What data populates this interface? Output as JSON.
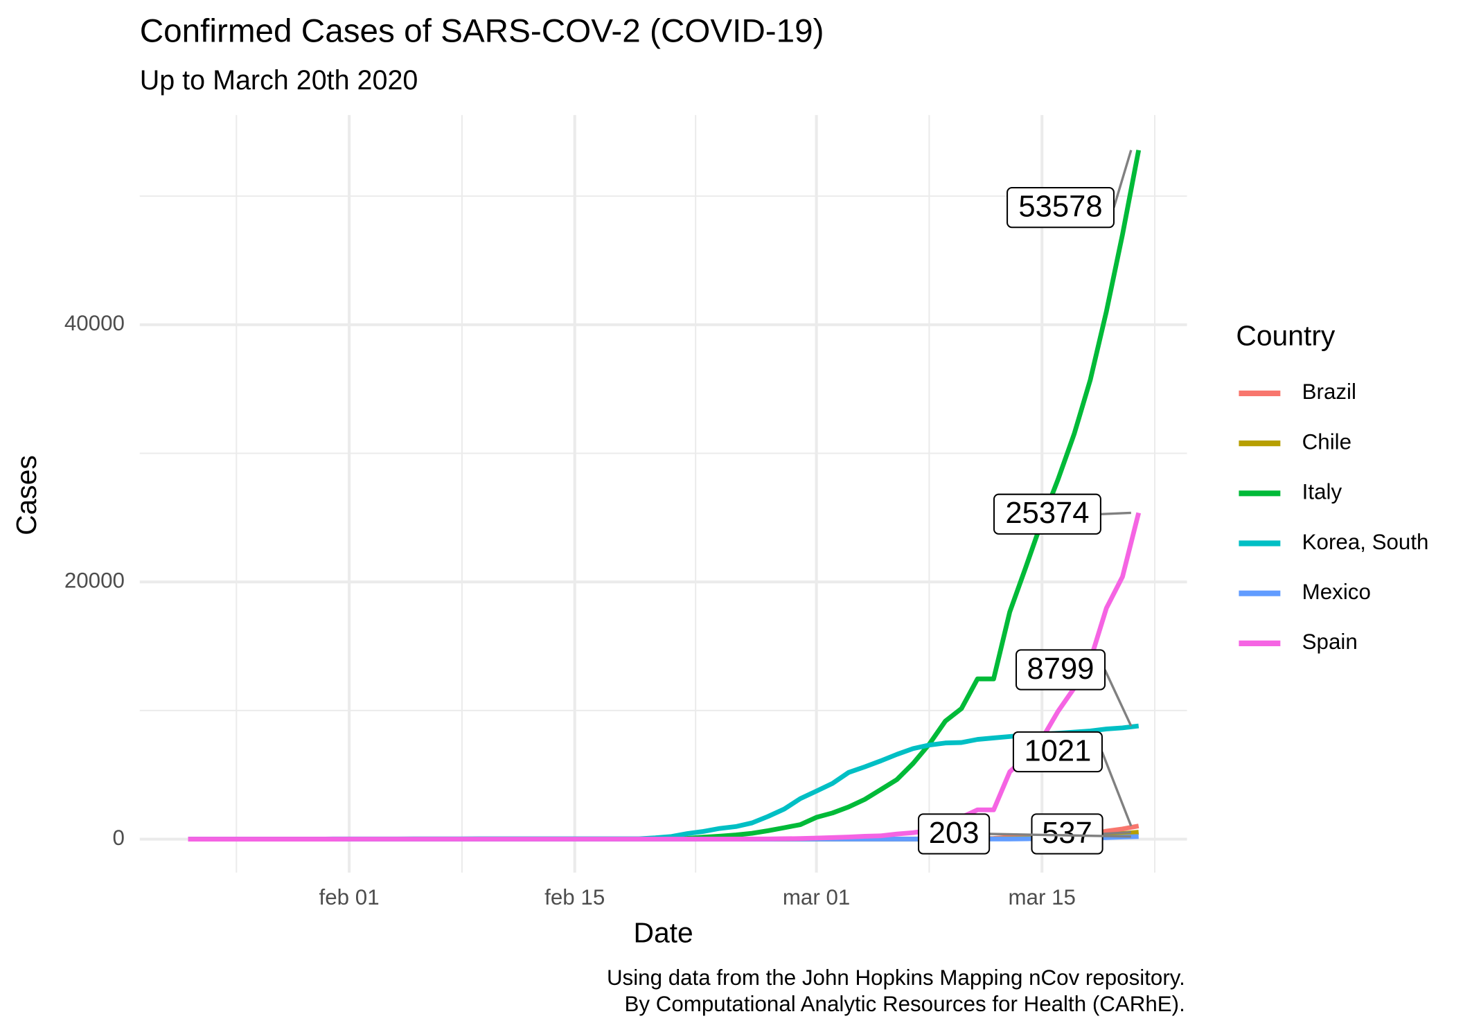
{
  "chart_data": {
    "type": "line",
    "title": "Confirmed Cases of SARS-COV-2 (COVID-19)",
    "subtitle": "Up to March 20th 2020",
    "x_label": "Date",
    "y_label": "Cases",
    "caption": [
      "Using data from the John Hopkins Mapping nCov repository.",
      "By Computational Analytic Resources for Health (CARhE)."
    ],
    "legend_title": "Country",
    "legend_position": "right",
    "grid": true,
    "x": [
      "01-22",
      "01-23",
      "01-24",
      "01-25",
      "01-26",
      "01-27",
      "01-28",
      "01-29",
      "01-30",
      "01-31",
      "02-01",
      "02-02",
      "02-03",
      "02-04",
      "02-05",
      "02-06",
      "02-07",
      "02-08",
      "02-09",
      "02-10",
      "02-11",
      "02-12",
      "02-13",
      "02-14",
      "02-15",
      "02-16",
      "02-17",
      "02-18",
      "02-19",
      "02-20",
      "02-21",
      "02-22",
      "02-23",
      "02-24",
      "02-25",
      "02-26",
      "02-27",
      "02-28",
      "02-29",
      "03-01",
      "03-02",
      "03-03",
      "03-04",
      "03-05",
      "03-06",
      "03-07",
      "03-08",
      "03-09",
      "03-10",
      "03-11",
      "03-12",
      "03-13",
      "03-14",
      "03-15",
      "03-16",
      "03-17",
      "03-18",
      "03-19",
      "03-20",
      "03-21"
    ],
    "xlim": [
      "01-19",
      "03-24"
    ],
    "xticks": [
      {
        "value": "02-01",
        "label": "feb 01"
      },
      {
        "value": "02-15",
        "label": "feb 15"
      },
      {
        "value": "03-01",
        "label": "mar 01"
      },
      {
        "value": "03-15",
        "label": "mar 15"
      }
    ],
    "ylim": [
      -2600,
      56300
    ],
    "yticks": [
      0,
      20000,
      40000
    ],
    "series": [
      {
        "name": "Brazil",
        "color": "#F8766D",
        "values": [
          0,
          0,
          0,
          0,
          0,
          0,
          0,
          0,
          0,
          0,
          0,
          0,
          0,
          0,
          0,
          0,
          0,
          0,
          0,
          0,
          0,
          0,
          0,
          0,
          0,
          0,
          0,
          0,
          0,
          0,
          0,
          0,
          0,
          0,
          0,
          1,
          1,
          1,
          2,
          2,
          2,
          2,
          4,
          4,
          13,
          13,
          20,
          25,
          31,
          38,
          52,
          151,
          151,
          162,
          200,
          321,
          372,
          621,
          793,
          1021
        ]
      },
      {
        "name": "Chile",
        "color": "#B79F00",
        "values": [
          0,
          0,
          0,
          0,
          0,
          0,
          0,
          0,
          0,
          0,
          0,
          0,
          0,
          0,
          0,
          0,
          0,
          0,
          0,
          0,
          0,
          0,
          0,
          0,
          0,
          0,
          0,
          0,
          0,
          0,
          0,
          0,
          0,
          0,
          0,
          0,
          0,
          0,
          0,
          0,
          0,
          1,
          1,
          4,
          4,
          4,
          8,
          8,
          13,
          23,
          23,
          43,
          61,
          74,
          155,
          201,
          238,
          238,
          434,
          537
        ]
      },
      {
        "name": "Italy",
        "color": "#00BA38",
        "values": [
          0,
          0,
          0,
          0,
          0,
          0,
          0,
          0,
          0,
          2,
          2,
          2,
          2,
          2,
          2,
          2,
          3,
          3,
          3,
          3,
          3,
          3,
          3,
          3,
          3,
          3,
          3,
          3,
          3,
          3,
          20,
          62,
          155,
          229,
          322,
          453,
          655,
          888,
          1128,
          1694,
          2036,
          2502,
          3089,
          3858,
          4636,
          5883,
          7375,
          9172,
          10149,
          12462,
          12462,
          17660,
          21157,
          24747,
          27980,
          31506,
          35713,
          41035,
          47021,
          53578
        ]
      },
      {
        "name": "Korea, South",
        "color": "#00BFC4",
        "values": [
          1,
          1,
          2,
          2,
          3,
          4,
          4,
          4,
          4,
          11,
          12,
          15,
          15,
          16,
          19,
          23,
          24,
          24,
          25,
          27,
          28,
          28,
          28,
          28,
          28,
          29,
          30,
          31,
          31,
          104,
          204,
          433,
          602,
          833,
          977,
          1261,
          1766,
          2337,
          3150,
          3736,
          4335,
          5186,
          5621,
          6088,
          6593,
          7041,
          7314,
          7478,
          7513,
          7755,
          7869,
          7979,
          8086,
          8162,
          8236,
          8320,
          8413,
          8565,
          8652,
          8799
        ]
      },
      {
        "name": "Mexico",
        "color": "#619CFF",
        "values": [
          0,
          0,
          0,
          0,
          0,
          0,
          0,
          0,
          0,
          0,
          0,
          0,
          0,
          0,
          0,
          0,
          0,
          0,
          0,
          0,
          0,
          0,
          0,
          0,
          0,
          0,
          0,
          0,
          0,
          0,
          0,
          0,
          0,
          0,
          0,
          0,
          0,
          1,
          4,
          5,
          5,
          5,
          5,
          5,
          6,
          6,
          7,
          7,
          7,
          8,
          12,
          12,
          26,
          41,
          53,
          82,
          93,
          118,
          164,
          203
        ]
      },
      {
        "name": "Spain",
        "color": "#F564E3",
        "values": [
          0,
          0,
          0,
          0,
          0,
          0,
          0,
          0,
          0,
          0,
          1,
          1,
          1,
          1,
          1,
          1,
          1,
          1,
          2,
          2,
          2,
          2,
          2,
          2,
          2,
          2,
          2,
          2,
          2,
          2,
          2,
          2,
          2,
          2,
          6,
          13,
          15,
          32,
          45,
          84,
          120,
          165,
          222,
          259,
          400,
          500,
          673,
          1073,
          1695,
          2277,
          2277,
          5232,
          6391,
          7798,
          9942,
          11748,
          13910,
          17963,
          20410,
          25374
        ]
      }
    ]
  }
}
